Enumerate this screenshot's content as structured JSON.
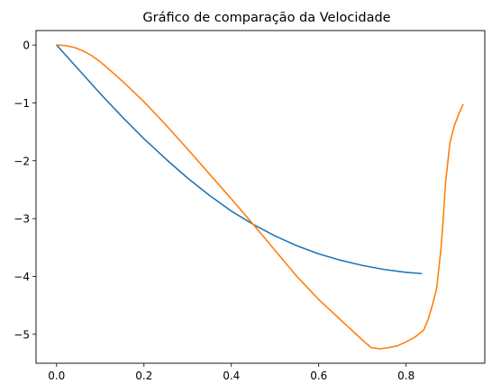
{
  "chart_data": {
    "type": "line",
    "title": "Gráfico de comparação da Velocidade",
    "xlabel": "",
    "ylabel": "",
    "xlim": [
      -0.047,
      0.98
    ],
    "ylim": [
      -5.5,
      0.25
    ],
    "grid": false,
    "x_ticks": [
      0.0,
      0.2,
      0.4,
      0.6,
      0.8
    ],
    "x_tick_labels": [
      "0.0",
      "0.2",
      "0.4",
      "0.6",
      "0.8"
    ],
    "y_ticks": [
      0,
      -1,
      -2,
      -3,
      -4,
      -5
    ],
    "y_tick_labels": [
      "0",
      "−1",
      "−2",
      "−3",
      "−4",
      "−5"
    ],
    "series": [
      {
        "color": "#1f77b4",
        "x": [
          0.0,
          0.05,
          0.1,
          0.15,
          0.2,
          0.25,
          0.3,
          0.35,
          0.4,
          0.45,
          0.5,
          0.55,
          0.6,
          0.65,
          0.7,
          0.75,
          0.8,
          0.835
        ],
        "y": [
          0.0,
          -0.42,
          -0.84,
          -1.24,
          -1.62,
          -1.97,
          -2.3,
          -2.6,
          -2.87,
          -3.1,
          -3.3,
          -3.47,
          -3.61,
          -3.72,
          -3.81,
          -3.88,
          -3.93,
          -3.95
        ]
      },
      {
        "color": "#ff7f0e",
        "x": [
          0.0,
          0.02,
          0.04,
          0.06,
          0.08,
          0.1,
          0.12,
          0.15,
          0.2,
          0.25,
          0.3,
          0.35,
          0.4,
          0.45,
          0.5,
          0.55,
          0.6,
          0.65,
          0.7,
          0.72,
          0.74,
          0.76,
          0.78,
          0.8,
          0.82,
          0.84,
          0.85,
          0.86,
          0.87,
          0.88,
          0.885,
          0.89,
          0.9,
          0.91,
          0.92,
          0.93
        ],
        "y": [
          0.0,
          -0.01,
          -0.04,
          -0.1,
          -0.18,
          -0.29,
          -0.42,
          -0.62,
          -0.98,
          -1.38,
          -1.8,
          -2.23,
          -2.66,
          -3.1,
          -3.55,
          -4.0,
          -4.4,
          -4.75,
          -5.1,
          -5.23,
          -5.25,
          -5.23,
          -5.2,
          -5.13,
          -5.05,
          -4.93,
          -4.75,
          -4.5,
          -4.2,
          -3.5,
          -3.0,
          -2.4,
          -1.7,
          -1.4,
          -1.2,
          -1.03
        ]
      }
    ]
  }
}
